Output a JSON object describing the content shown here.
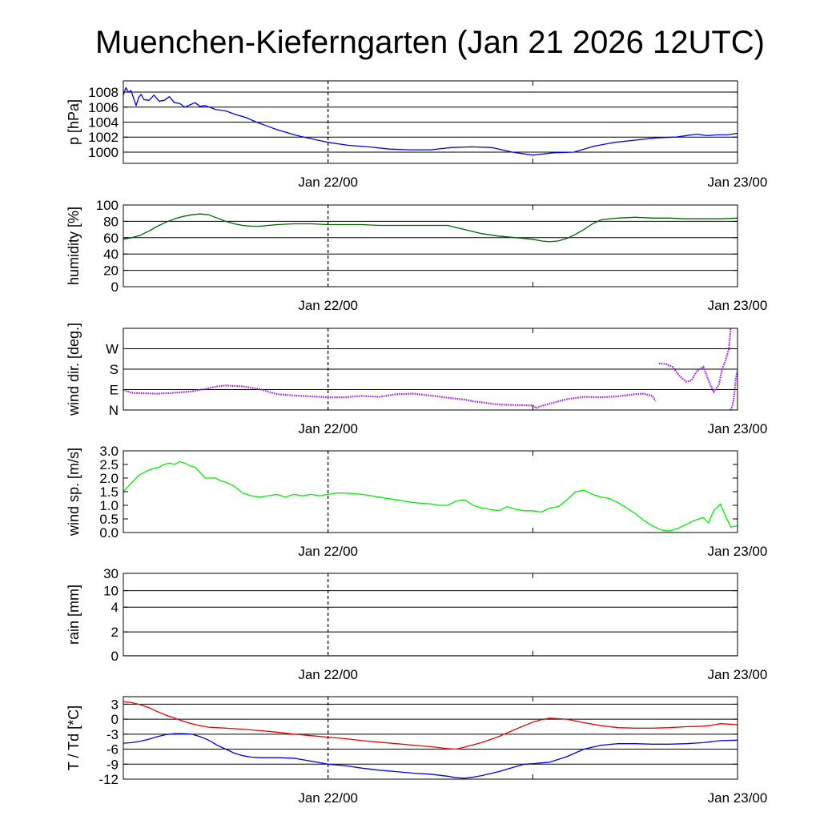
{
  "title": "Muenchen-Kieferngarten (Jan 21 2026 12UTC)",
  "time_axis": {
    "range_hours": [
      0,
      36
    ],
    "tick_hours": [
      12,
      24
    ],
    "label_ticks": [
      {
        "hour": 12,
        "label": "Jan 22/00"
      },
      {
        "hour": 36,
        "label": "Jan 23/00"
      }
    ],
    "dashed_marker_hour": 12,
    "minor_tick_hours": [
      24
    ]
  },
  "chart_data": [
    {
      "id": "pressure",
      "type": "line",
      "ylabel": "p [hPa]",
      "ylim": [
        998.5,
        1009.5
      ],
      "gridlines": [
        1000,
        1002,
        1004,
        1006,
        1008
      ],
      "yticks": [
        {
          "v": 1000,
          "label": "1000"
        },
        {
          "v": 1002,
          "label": "1002"
        },
        {
          "v": 1004,
          "label": "1004"
        },
        {
          "v": 1006,
          "label": "1006"
        },
        {
          "v": 1008,
          "label": "1008"
        }
      ],
      "series": [
        {
          "name": "p",
          "color": "#0000ee",
          "x": [
            0,
            0.15,
            0.3,
            0.45,
            0.6,
            0.75,
            0.9,
            1.05,
            1.2,
            1.5,
            1.8,
            2.1,
            2.4,
            2.7,
            3.0,
            3.3,
            3.6,
            3.9,
            4.2,
            4.5,
            4.8,
            5.4,
            6.0,
            6.6,
            7.2,
            7.8,
            8.4,
            9.0,
            9.6,
            10.2,
            10.8,
            11.4,
            12.0,
            13.2,
            14.4,
            15.6,
            16.8,
            18.0,
            19.2,
            20.4,
            21.6,
            22.8,
            24.0,
            25.2,
            26.4,
            27.6,
            28.8,
            30.0,
            31.2,
            32.4,
            33.6,
            34.2,
            34.8,
            35.4,
            36.0
          ],
          "values": [
            1007.6,
            1008.6,
            1008.0,
            1008.2,
            1007.2,
            1006.2,
            1007.3,
            1007.7,
            1007.0,
            1006.9,
            1007.6,
            1006.8,
            1006.9,
            1007.4,
            1006.6,
            1006.5,
            1006.0,
            1006.3,
            1006.6,
            1006.1,
            1006.2,
            1005.7,
            1005.5,
            1005.0,
            1004.6,
            1004.0,
            1003.5,
            1003.0,
            1002.6,
            1002.2,
            1001.9,
            1001.6,
            1001.3,
            1000.9,
            1000.7,
            1000.4,
            1000.3,
            1000.3,
            1000.6,
            1000.7,
            1000.6,
            1000.0,
            999.6,
            999.9,
            1000.0,
            1000.8,
            1001.3,
            1001.6,
            1001.9,
            1002.0,
            1002.4,
            1002.2,
            1002.3,
            1002.3,
            1002.5
          ]
        }
      ]
    },
    {
      "id": "humidity",
      "type": "line",
      "ylabel": "humidity [%]",
      "ylim": [
        0,
        100
      ],
      "gridlines": [
        0,
        20,
        40,
        60,
        80,
        100
      ],
      "yticks": [
        {
          "v": 0,
          "label": "0"
        },
        {
          "v": 20,
          "label": "20"
        },
        {
          "v": 40,
          "label": "40"
        },
        {
          "v": 60,
          "label": "60"
        },
        {
          "v": 80,
          "label": "80"
        },
        {
          "v": 100,
          "label": "100"
        }
      ],
      "series": [
        {
          "name": "humidity",
          "color": "#006400",
          "x": [
            0,
            0.5,
            1.0,
            1.5,
            2.0,
            2.5,
            3.0,
            3.5,
            4.0,
            4.5,
            5.0,
            5.5,
            6.0,
            6.5,
            7.0,
            7.5,
            8.0,
            9.0,
            10.0,
            11.0,
            12.0,
            13.0,
            14.0,
            15.0,
            16.0,
            17.0,
            18.0,
            19.0,
            20.0,
            21.0,
            22.0,
            23.0,
            24.0,
            24.5,
            25.0,
            25.5,
            26.0,
            26.5,
            27.0,
            27.5,
            28.0,
            28.5,
            29.0,
            30.0,
            31.0,
            32.0,
            33.0,
            34.0,
            35.0,
            36.0
          ],
          "values": [
            58,
            60,
            63,
            68,
            74,
            79,
            83,
            86,
            88,
            89,
            88,
            84,
            80,
            77,
            75,
            74,
            74,
            76,
            77,
            77,
            76,
            76,
            76,
            75,
            75,
            75,
            75,
            75,
            70,
            65,
            62,
            60,
            58,
            56,
            55,
            56,
            59,
            64,
            70,
            77,
            82,
            83,
            84,
            85,
            84,
            84,
            83,
            83,
            83,
            84
          ]
        }
      ]
    },
    {
      "id": "wind_direction",
      "type": "scatter",
      "ylabel": "wind dir. [deg.]",
      "ylim": [
        0,
        360
      ],
      "gridlines": [
        90,
        180,
        270
      ],
      "yticks": [
        {
          "v": 0,
          "label": "N"
        },
        {
          "v": 90,
          "label": "E"
        },
        {
          "v": 180,
          "label": "S"
        },
        {
          "v": 270,
          "label": "W"
        }
      ],
      "series": [
        {
          "name": "dir_a",
          "color": "#a020f0",
          "x": [
            0,
            0.5,
            1.0,
            2.0,
            3.0,
            4.0,
            5.0,
            5.5,
            6.0,
            7.0,
            8.0,
            9.0,
            10.0,
            11.0,
            12.0,
            13.0,
            14.0,
            15.0,
            16.0,
            17.0,
            18.0,
            19.0,
            20.0,
            20.5,
            21.0,
            22.0,
            23.0,
            24.0,
            24.2,
            24.5,
            25.0,
            26.0,
            27.0,
            28.0,
            29.0,
            30.0,
            30.5,
            31.0,
            31.2
          ],
          "values": [
            88,
            76,
            74,
            72,
            76,
            82,
            96,
            104,
            108,
            104,
            92,
            70,
            64,
            60,
            56,
            56,
            62,
            58,
            70,
            72,
            64,
            54,
            46,
            38,
            34,
            24,
            22,
            20,
            8,
            18,
            28,
            48,
            58,
            56,
            60,
            70,
            72,
            62,
            40
          ]
        },
        {
          "name": "dir_b",
          "color": "#a020f0",
          "x": [
            31.4,
            31.8,
            32.2,
            32.6,
            33.0,
            33.3,
            33.6,
            34.0,
            34.3,
            34.6,
            34.9,
            35.1,
            35.3,
            35.5,
            35.6
          ],
          "values": [
            205,
            203,
            190,
            150,
            125,
            130,
            170,
            190,
            130,
            80,
            110,
            180,
            220,
            270,
            365
          ]
        },
        {
          "name": "dir_c",
          "color": "#a020f0",
          "x": [
            35.6,
            35.7,
            35.8,
            35.9,
            36.0
          ],
          "values": [
            0,
            20,
            60,
            140,
            175
          ]
        }
      ]
    },
    {
      "id": "wind_speed",
      "type": "line",
      "ylabel": "wind sp. [m/s]",
      "ylim": [
        0,
        3.0
      ],
      "gridlines": [],
      "yticks": [
        {
          "v": 0.0,
          "label": "0.0"
        },
        {
          "v": 0.5,
          "label": "0.5"
        },
        {
          "v": 1.0,
          "label": "1.0"
        },
        {
          "v": 1.5,
          "label": "1.5"
        },
        {
          "v": 2.0,
          "label": "2.0"
        },
        {
          "v": 2.5,
          "label": "2.5"
        },
        {
          "v": 3.0,
          "label": "3.0"
        }
      ],
      "series": [
        {
          "name": "speed",
          "color": "#00ee00",
          "x": [
            0,
            0.3,
            0.6,
            0.9,
            1.2,
            1.5,
            1.8,
            2.1,
            2.4,
            2.7,
            3.0,
            3.3,
            3.6,
            3.9,
            4.2,
            4.5,
            4.8,
            5.1,
            5.4,
            5.7,
            6.0,
            6.5,
            7.0,
            7.5,
            8.0,
            8.5,
            9.0,
            9.5,
            10.0,
            10.5,
            11.0,
            11.5,
            12.0,
            12.5,
            13.0,
            14.0,
            15.0,
            16.0,
            17.0,
            18.0,
            18.5,
            19.0,
            19.5,
            20.0,
            20.5,
            21.0,
            21.5,
            22.0,
            22.5,
            23.0,
            23.5,
            24.0,
            24.5,
            25.0,
            25.5,
            26.0,
            26.5,
            27.0,
            27.5,
            28.0,
            28.5,
            29.0,
            29.5,
            30.0,
            30.5,
            31.0,
            31.5,
            32.0,
            32.5,
            33.0,
            33.5,
            34.0,
            34.3,
            34.6,
            35.0,
            35.3,
            35.6,
            36.0
          ],
          "values": [
            1.5,
            1.7,
            1.9,
            2.1,
            2.2,
            2.3,
            2.35,
            2.4,
            2.5,
            2.55,
            2.5,
            2.6,
            2.55,
            2.45,
            2.4,
            2.2,
            2.0,
            2.0,
            2.0,
            1.9,
            1.85,
            1.7,
            1.45,
            1.35,
            1.3,
            1.35,
            1.4,
            1.3,
            1.4,
            1.35,
            1.4,
            1.35,
            1.4,
            1.45,
            1.45,
            1.4,
            1.3,
            1.2,
            1.1,
            1.05,
            1.0,
            1.0,
            1.15,
            1.2,
            1.0,
            0.9,
            0.85,
            0.8,
            0.95,
            0.85,
            0.8,
            0.8,
            0.75,
            0.9,
            0.95,
            1.2,
            1.5,
            1.55,
            1.4,
            1.3,
            1.25,
            1.1,
            0.9,
            0.7,
            0.45,
            0.25,
            0.1,
            0.05,
            0.15,
            0.3,
            0.45,
            0.55,
            0.35,
            0.8,
            1.05,
            0.6,
            0.2,
            0.25
          ]
        }
      ]
    },
    {
      "id": "rain",
      "type": "line",
      "ylabel": "rain [mm]",
      "ylim": [
        0,
        30
      ],
      "scale": "custom",
      "gridlines": [
        0,
        2,
        4,
        10,
        30
      ],
      "yticks": [
        {
          "v": 0,
          "label": "0"
        },
        {
          "v": 2,
          "label": "2"
        },
        {
          "v": 4,
          "label": "4"
        },
        {
          "v": 10,
          "label": "10"
        },
        {
          "v": 30,
          "label": "30"
        }
      ],
      "series": [
        {
          "name": "rain",
          "color": "#0000ee",
          "x": [
            0,
            36
          ],
          "values": [
            0,
            0
          ]
        }
      ]
    },
    {
      "id": "temperature",
      "type": "line",
      "ylabel": "T / Td [*C]",
      "ylim": [
        -12,
        4.5
      ],
      "gridlines": [
        -12,
        -9,
        -6,
        -3,
        0,
        3
      ],
      "yticks": [
        {
          "v": -12,
          "label": "-12"
        },
        {
          "v": -9,
          "label": "-9"
        },
        {
          "v": -6,
          "label": "-6"
        },
        {
          "v": -3,
          "label": "-3"
        },
        {
          "v": 0,
          "label": "0"
        },
        {
          "v": 3,
          "label": "3"
        }
      ],
      "series": [
        {
          "name": "T",
          "color": "#ee0000",
          "x": [
            0,
            0.5,
            1.0,
            1.5,
            2.0,
            2.5,
            3.0,
            3.5,
            4.0,
            4.5,
            5.0,
            6.0,
            7.0,
            8.0,
            9.0,
            10.0,
            11.0,
            12.0,
            13.0,
            14.0,
            15.0,
            16.0,
            17.0,
            18.0,
            19.0,
            19.5,
            20.0,
            21.0,
            22.0,
            23.0,
            24.0,
            24.5,
            25.0,
            26.0,
            27.0,
            28.0,
            29.0,
            30.0,
            31.0,
            32.0,
            33.0,
            34.0,
            34.5,
            35.0,
            35.5,
            36.0
          ],
          "values": [
            3.5,
            3.3,
            2.9,
            2.3,
            1.5,
            0.8,
            0.2,
            -0.4,
            -0.9,
            -1.3,
            -1.6,
            -1.8,
            -2.0,
            -2.3,
            -2.6,
            -3.0,
            -3.3,
            -3.6,
            -3.9,
            -4.3,
            -4.6,
            -4.9,
            -5.2,
            -5.5,
            -5.9,
            -6.0,
            -5.6,
            -4.7,
            -3.5,
            -2.0,
            -0.6,
            -0.1,
            0.2,
            0.0,
            -0.7,
            -1.3,
            -1.7,
            -1.8,
            -1.8,
            -1.7,
            -1.5,
            -1.4,
            -1.2,
            -0.9,
            -1.0,
            -1.1
          ]
        },
        {
          "name": "Td",
          "color": "#0000ee",
          "x": [
            0,
            0.5,
            1.0,
            1.5,
            2.0,
            2.5,
            3.0,
            3.5,
            4.0,
            4.5,
            5.0,
            5.5,
            6.0,
            6.5,
            7.0,
            7.5,
            8.0,
            9.0,
            10.0,
            11.0,
            12.0,
            13.0,
            14.0,
            15.0,
            16.0,
            17.0,
            18.0,
            19.0,
            19.5,
            20.0,
            20.5,
            21.0,
            22.0,
            23.0,
            23.5,
            24.0,
            25.0,
            26.0,
            27.0,
            28.0,
            29.0,
            30.0,
            31.0,
            32.0,
            33.0,
            34.0,
            35.0,
            36.0
          ],
          "values": [
            -4.8,
            -4.7,
            -4.4,
            -4.0,
            -3.5,
            -3.1,
            -2.9,
            -2.9,
            -3.0,
            -3.5,
            -4.2,
            -5.2,
            -6.0,
            -6.8,
            -7.3,
            -7.6,
            -7.7,
            -7.7,
            -7.8,
            -8.4,
            -9.0,
            -9.3,
            -9.8,
            -10.2,
            -10.5,
            -10.8,
            -11.0,
            -11.4,
            -11.7,
            -11.8,
            -11.6,
            -11.3,
            -10.5,
            -9.5,
            -9.0,
            -8.9,
            -8.6,
            -7.5,
            -6.0,
            -5.2,
            -4.9,
            -4.9,
            -5.0,
            -5.0,
            -4.9,
            -4.7,
            -4.3,
            -4.2
          ]
        }
      ]
    }
  ]
}
